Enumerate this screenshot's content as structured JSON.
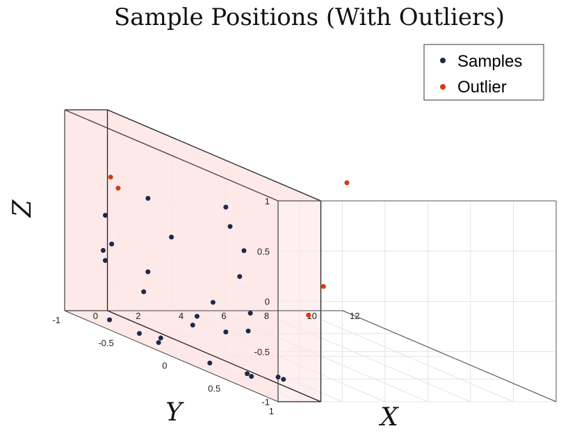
{
  "chart_data": {
    "type": "scatter",
    "title": "Sample Positions (With Outliers)",
    "xlabel": "X",
    "ylabel": "Y",
    "zlabel": "Z",
    "xlim": [
      -1,
      12
    ],
    "ylim": [
      -1,
      1
    ],
    "zlim": [
      -1,
      1
    ],
    "x_ticks": [
      "0",
      "2",
      "4",
      "6",
      "8",
      "10",
      "12"
    ],
    "y_ticks": [
      "-1",
      "-0.5",
      "0",
      "0.5",
      "1"
    ],
    "z_ticks": [
      "-1",
      "-0.5",
      "0",
      "0.5",
      "1"
    ],
    "grid": true,
    "legend_position": "top-right",
    "shaded_region": {
      "x": [
        -1,
        1
      ],
      "y": [
        -1,
        1
      ],
      "z": [
        -1,
        1
      ],
      "color": "#fde3e3"
    },
    "series": [
      {
        "name": "Samples",
        "color": "#1b2a4a",
        "points": [
          [
            -0.5,
            0.95,
            -0.8
          ],
          [
            -0.5,
            0.9,
            -0.8
          ],
          [
            -0.35,
            0.62,
            -0.92
          ],
          [
            -0.25,
            0.56,
            -0.92
          ],
          [
            -0.3,
            0.6,
            -0.3
          ],
          [
            -0.3,
            0.5,
            0.02
          ],
          [
            -0.15,
            0.55,
            -0.5
          ],
          [
            -0.2,
            0.35,
            -0.6
          ],
          [
            -0.35,
            0.55,
            0.3
          ],
          [
            -0.3,
            0.25,
            -0.35
          ],
          [
            0.0,
            0.35,
            0.45
          ],
          [
            0.05,
            0.3,
            0.62
          ],
          [
            -0.05,
            0.05,
            -0.58
          ],
          [
            0.0,
            0.0,
            -0.69
          ],
          [
            0.05,
            0.15,
            -1.0
          ],
          [
            -0.1,
            -0.3,
            -1.0
          ],
          [
            0.0,
            -0.5,
            -1.0
          ],
          [
            0.5,
            -0.4,
            -1.0
          ],
          [
            0.1,
            -0.8,
            -1.0
          ],
          [
            0.0,
            -0.42,
            -0.35
          ],
          [
            0.7,
            -0.6,
            -0.63
          ],
          [
            0.5,
            -0.3,
            0.05
          ],
          [
            0.9,
            -0.6,
            0.3
          ],
          [
            0.8,
            -0.92,
            -0.3
          ],
          [
            0.8,
            -1.0,
            -0.4
          ],
          [
            0.9,
            -1.0,
            -0.5
          ],
          [
            0.9,
            -1.0,
            -0.05
          ]
        ]
      },
      {
        "name": "Outlier",
        "color": "#d63a0f",
        "points": [
          [
            1.15,
            -1.0,
            0.33
          ],
          [
            1.5,
            -1.0,
            0.22
          ],
          [
            9.7,
            -0.5,
            0.5
          ],
          [
            11.0,
            -0.98,
            -0.75
          ],
          [
            9.9,
            -0.9,
            -1.0
          ]
        ]
      }
    ]
  }
}
